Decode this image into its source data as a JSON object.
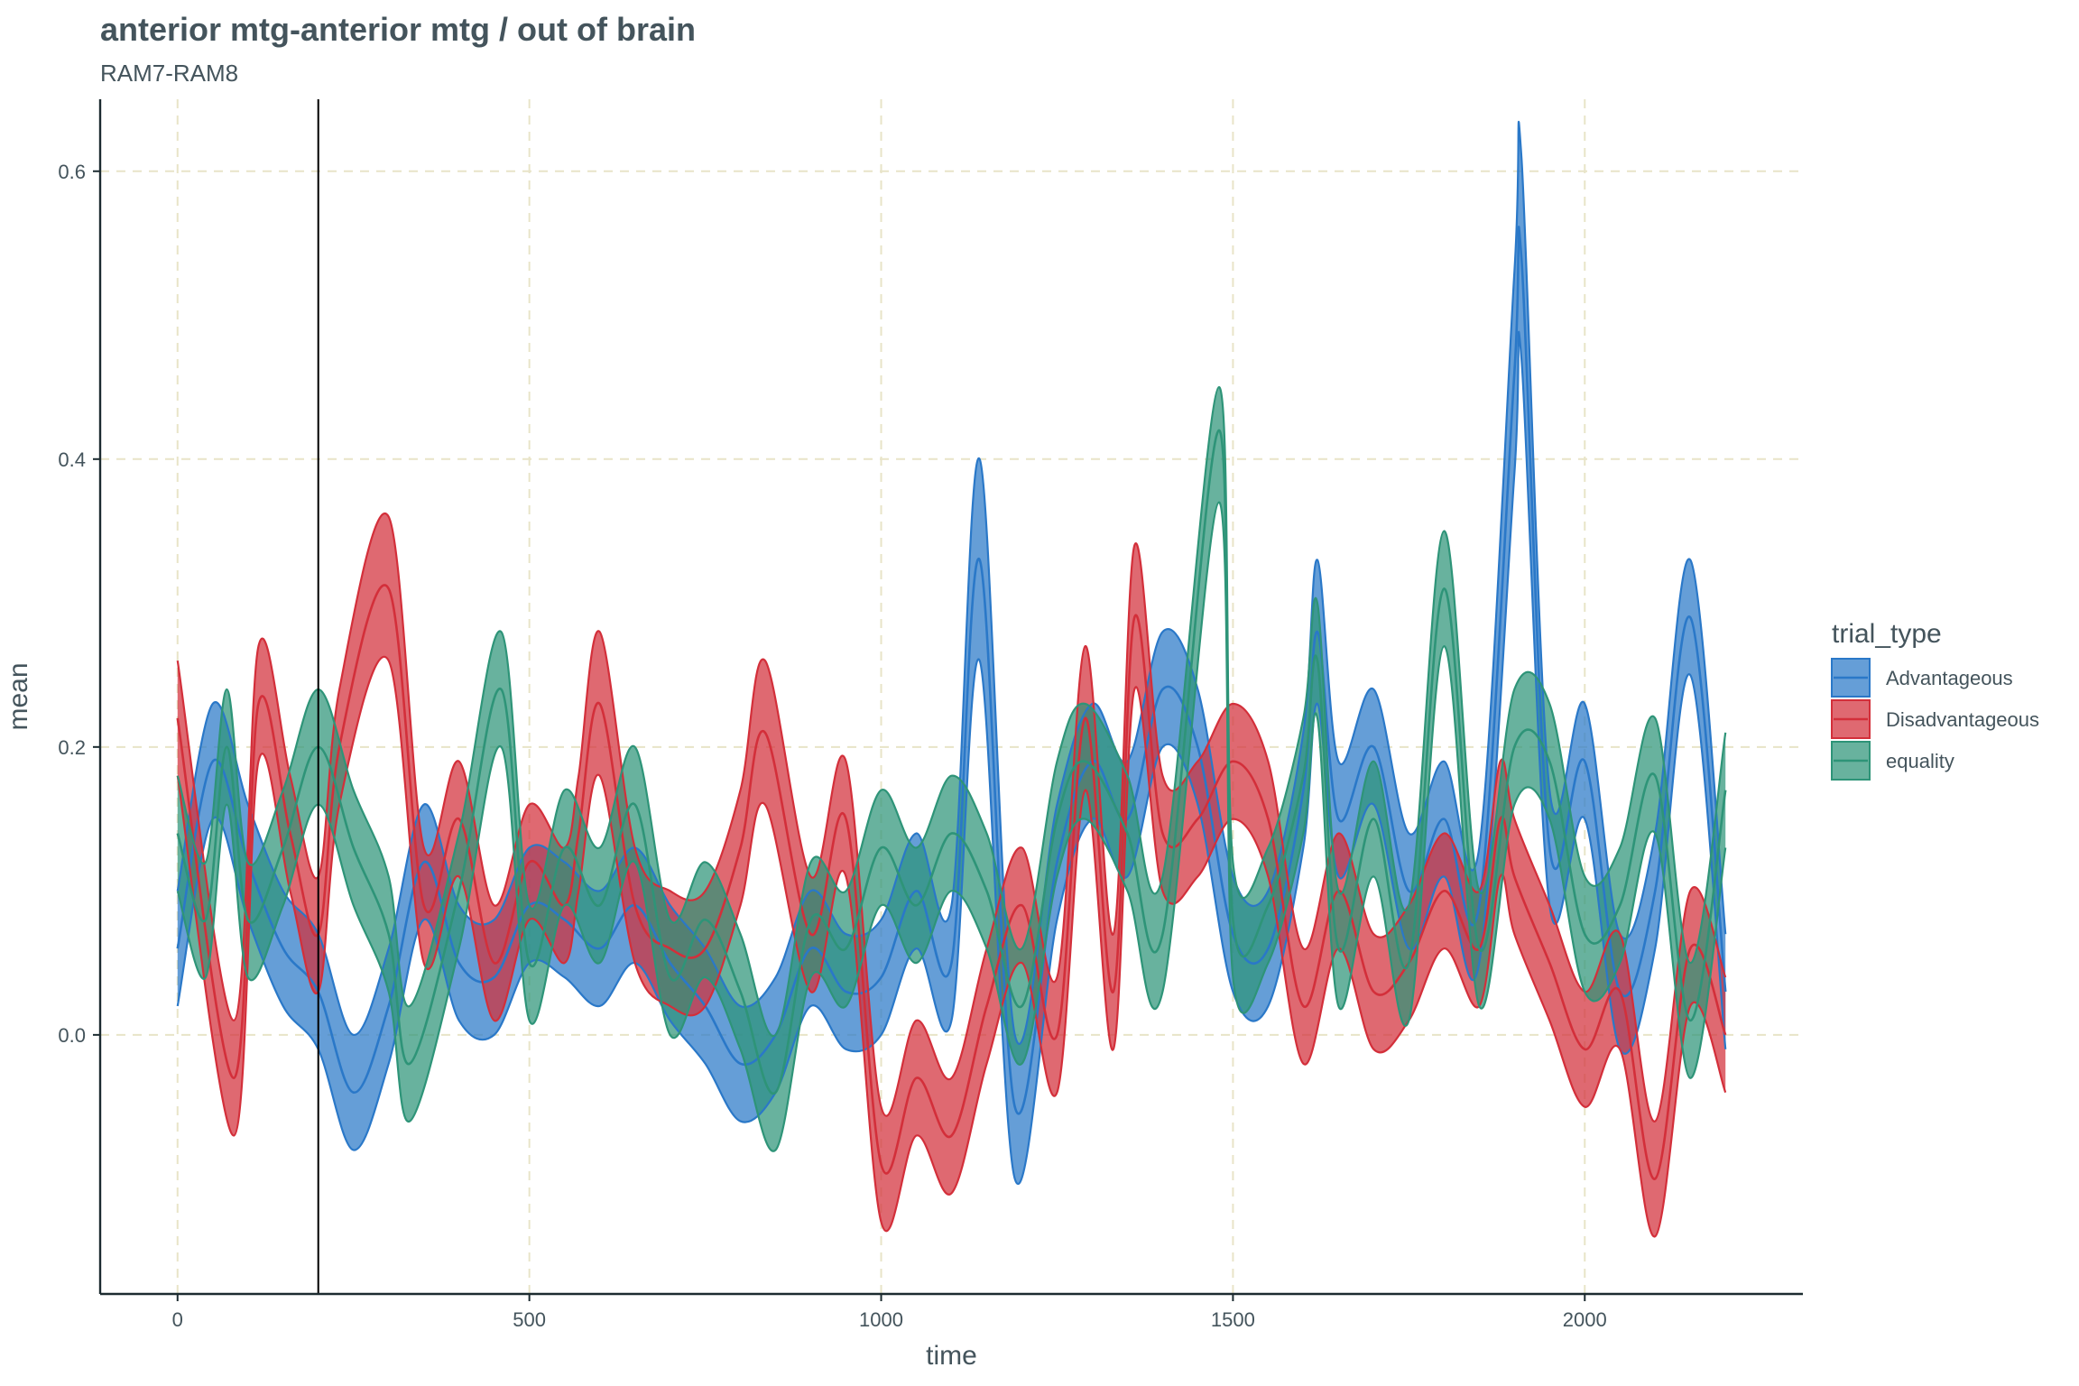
{
  "chart_data": {
    "type": "area",
    "title": "anterior mtg-anterior mtg / out of brain",
    "subtitle": "RAM7-RAM8",
    "xlabel": "time",
    "ylabel": "mean",
    "xlim": [
      -110,
      2310
    ],
    "ylim": [
      -0.18,
      0.65
    ],
    "x_ticks": [
      0,
      500,
      1000,
      1500,
      2000
    ],
    "x_tick_labels": [
      "0",
      "500",
      "1000",
      "1500",
      "2000"
    ],
    "y_ticks": [
      0.0,
      0.2,
      0.4,
      0.6
    ],
    "y_tick_labels": [
      "0.0",
      "0.2",
      "0.4",
      "0.6"
    ],
    "grid": true,
    "vline_x": 200,
    "legend": {
      "title": "trial_type",
      "position": "right"
    },
    "series": [
      {
        "name": "Advantageous",
        "color": "#2a78c8",
        "x": [
          0,
          50,
          100,
          150,
          200,
          250,
          300,
          350,
          400,
          450,
          500,
          550,
          600,
          650,
          700,
          750,
          800,
          850,
          900,
          950,
          1000,
          1050,
          1100,
          1140,
          1190,
          1250,
          1300,
          1350,
          1400,
          1450,
          1500,
          1550,
          1600,
          1620,
          1650,
          1700,
          1750,
          1800,
          1850,
          1900,
          1910,
          1950,
          2000,
          2050,
          2100,
          2150,
          2200
        ],
        "mean": [
          0.06,
          0.19,
          0.12,
          0.06,
          0.03,
          -0.04,
          0.02,
          0.12,
          0.05,
          0.04,
          0.09,
          0.08,
          0.06,
          0.09,
          0.05,
          0.02,
          -0.02,
          0.0,
          0.06,
          0.03,
          0.04,
          0.1,
          0.05,
          0.33,
          -0.05,
          0.12,
          0.19,
          0.15,
          0.24,
          0.2,
          0.07,
          0.06,
          0.17,
          0.28,
          0.15,
          0.2,
          0.1,
          0.15,
          0.09,
          0.46,
          0.54,
          0.13,
          0.19,
          0.03,
          0.1,
          0.29,
          0.03
        ],
        "lower": [
          0.02,
          0.15,
          0.08,
          0.02,
          -0.01,
          -0.08,
          -0.02,
          0.08,
          0.01,
          0.0,
          0.05,
          0.04,
          0.02,
          0.05,
          0.01,
          -0.02,
          -0.06,
          -0.04,
          0.02,
          -0.01,
          0.0,
          0.06,
          0.01,
          0.26,
          -0.1,
          0.08,
          0.15,
          0.11,
          0.2,
          0.16,
          0.03,
          0.02,
          0.13,
          0.23,
          0.11,
          0.16,
          0.06,
          0.11,
          0.05,
          0.39,
          0.47,
          0.09,
          0.15,
          -0.01,
          0.06,
          0.25,
          -0.01
        ],
        "upper": [
          0.1,
          0.23,
          0.16,
          0.1,
          0.07,
          0.0,
          0.06,
          0.16,
          0.09,
          0.08,
          0.13,
          0.12,
          0.1,
          0.13,
          0.09,
          0.06,
          0.02,
          0.04,
          0.1,
          0.07,
          0.08,
          0.14,
          0.09,
          0.4,
          0.0,
          0.16,
          0.23,
          0.19,
          0.28,
          0.24,
          0.11,
          0.1,
          0.21,
          0.33,
          0.19,
          0.24,
          0.14,
          0.19,
          0.13,
          0.53,
          0.61,
          0.17,
          0.23,
          0.07,
          0.14,
          0.33,
          0.07
        ]
      },
      {
        "name": "Disadvantageous",
        "color": "#d32f3a",
        "x": [
          0,
          80,
          115,
          160,
          200,
          230,
          300,
          350,
          400,
          450,
          500,
          550,
          570,
          600,
          650,
          700,
          750,
          800,
          835,
          900,
          950,
          1000,
          1050,
          1100,
          1150,
          1200,
          1250,
          1290,
          1330,
          1360,
          1400,
          1450,
          1500,
          1550,
          1600,
          1650,
          1700,
          1750,
          1800,
          1850,
          1880,
          1900,
          1950,
          2000,
          2050,
          2100,
          2150,
          2200
        ],
        "mean": [
          0.22,
          -0.03,
          0.23,
          0.14,
          0.07,
          0.2,
          0.31,
          0.09,
          0.15,
          0.05,
          0.12,
          0.09,
          0.14,
          0.23,
          0.09,
          0.06,
          0.06,
          0.13,
          0.21,
          0.07,
          0.15,
          -0.09,
          -0.03,
          -0.07,
          0.02,
          0.09,
          0.0,
          0.22,
          0.03,
          0.29,
          0.14,
          0.15,
          0.19,
          0.15,
          0.02,
          0.1,
          0.03,
          0.05,
          0.1,
          0.06,
          0.15,
          0.11,
          0.05,
          -0.01,
          0.03,
          -0.1,
          0.06,
          0.0
        ],
        "lower": [
          0.18,
          -0.07,
          0.19,
          0.1,
          0.03,
          0.16,
          0.26,
          0.05,
          0.11,
          0.01,
          0.08,
          0.05,
          0.1,
          0.18,
          0.05,
          0.02,
          0.02,
          0.09,
          0.16,
          0.03,
          0.11,
          -0.13,
          -0.07,
          -0.11,
          -0.02,
          0.05,
          -0.04,
          0.17,
          -0.01,
          0.24,
          0.1,
          0.11,
          0.15,
          0.11,
          -0.02,
          0.06,
          -0.01,
          0.01,
          0.06,
          0.02,
          0.11,
          0.07,
          0.01,
          -0.05,
          -0.01,
          -0.14,
          0.02,
          -0.04
        ],
        "upper": [
          0.26,
          0.01,
          0.27,
          0.18,
          0.11,
          0.24,
          0.36,
          0.13,
          0.19,
          0.09,
          0.16,
          0.13,
          0.18,
          0.28,
          0.13,
          0.1,
          0.1,
          0.17,
          0.26,
          0.11,
          0.19,
          -0.05,
          0.01,
          -0.03,
          0.06,
          0.13,
          0.04,
          0.27,
          0.07,
          0.34,
          0.18,
          0.19,
          0.23,
          0.19,
          0.06,
          0.14,
          0.07,
          0.09,
          0.14,
          0.1,
          0.19,
          0.15,
          0.09,
          0.03,
          0.07,
          -0.06,
          0.1,
          0.04
        ]
      },
      {
        "name": "equality",
        "color": "#2e9478",
        "x": [
          0,
          40,
          70,
          100,
          150,
          200,
          250,
          300,
          330,
          400,
          460,
          500,
          550,
          600,
          650,
          700,
          750,
          800,
          850,
          900,
          950,
          1000,
          1050,
          1100,
          1150,
          1200,
          1250,
          1290,
          1350,
          1400,
          1480,
          1500,
          1550,
          1600,
          1620,
          1650,
          1700,
          1750,
          1800,
          1850,
          1900,
          1950,
          2000,
          2050,
          2100,
          2150,
          2200
        ],
        "mean": [
          0.14,
          0.08,
          0.2,
          0.08,
          0.13,
          0.2,
          0.13,
          0.07,
          -0.02,
          0.1,
          0.24,
          0.05,
          0.13,
          0.09,
          0.16,
          0.04,
          0.08,
          0.03,
          -0.04,
          0.08,
          0.06,
          0.13,
          0.09,
          0.14,
          0.1,
          0.02,
          0.15,
          0.19,
          0.14,
          0.07,
          0.42,
          0.08,
          0.09,
          0.18,
          0.26,
          0.06,
          0.15,
          0.05,
          0.31,
          0.06,
          0.2,
          0.19,
          0.07,
          0.09,
          0.18,
          0.01,
          0.17
        ],
        "lower": [
          0.1,
          0.04,
          0.16,
          0.04,
          0.09,
          0.16,
          0.09,
          0.03,
          -0.06,
          0.06,
          0.2,
          0.01,
          0.09,
          0.05,
          0.12,
          0.0,
          0.04,
          -0.01,
          -0.08,
          0.04,
          0.02,
          0.09,
          0.05,
          0.1,
          0.06,
          -0.02,
          0.11,
          0.15,
          0.1,
          0.03,
          0.37,
          0.04,
          0.05,
          0.14,
          0.22,
          0.02,
          0.11,
          0.01,
          0.27,
          0.02,
          0.16,
          0.15,
          0.03,
          0.05,
          0.14,
          -0.03,
          0.13
        ],
        "upper": [
          0.18,
          0.12,
          0.24,
          0.12,
          0.17,
          0.24,
          0.17,
          0.11,
          0.02,
          0.14,
          0.28,
          0.09,
          0.17,
          0.13,
          0.2,
          0.08,
          0.12,
          0.07,
          0.0,
          0.12,
          0.1,
          0.17,
          0.13,
          0.18,
          0.14,
          0.06,
          0.19,
          0.23,
          0.18,
          0.11,
          0.45,
          0.12,
          0.13,
          0.22,
          0.3,
          0.1,
          0.19,
          0.09,
          0.35,
          0.1,
          0.24,
          0.23,
          0.11,
          0.13,
          0.22,
          0.05,
          0.21
        ]
      }
    ]
  }
}
